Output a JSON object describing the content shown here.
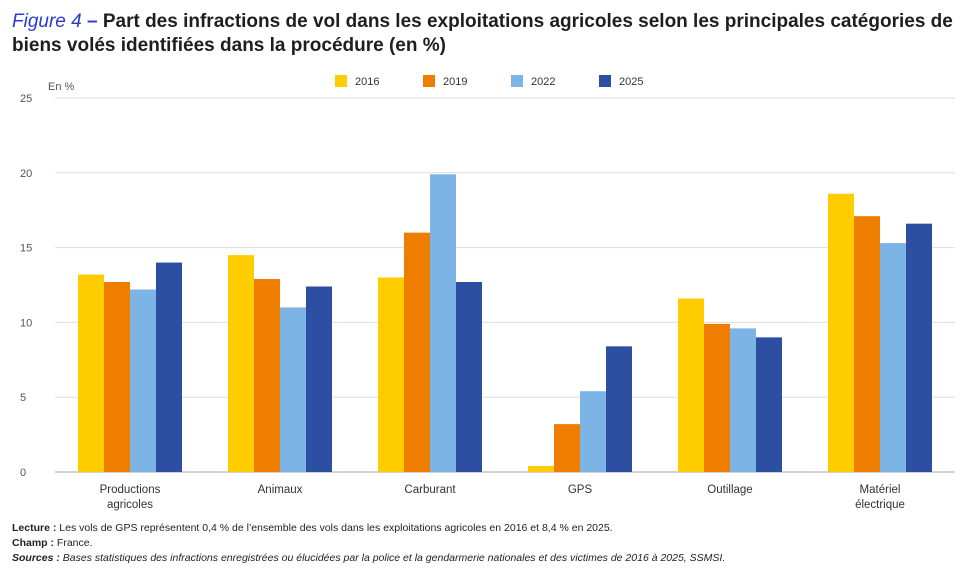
{
  "title": {
    "figure": "Figure 4",
    "dash": " – ",
    "text": "Part des infractions de vol dans les exploitations agricoles selon les principales catégories de biens volés identifiées dans la procédure (en %)"
  },
  "colors": {
    "2016": "#ffcc00",
    "2019": "#ee7d00",
    "2022": "#7db4e6",
    "2025": "#2d4fa1",
    "grid": "#dddddd"
  },
  "chart_data": {
    "type": "bar",
    "unit_label": "En %",
    "categories": [
      [
        "Productions",
        "agricoles"
      ],
      [
        "Animaux"
      ],
      [
        "Carburant"
      ],
      [
        "GPS"
      ],
      [
        "Outillage"
      ],
      [
        "Matériel",
        "électrique"
      ]
    ],
    "series": [
      {
        "name": "2016",
        "values": [
          13.2,
          14.5,
          13.0,
          0.4,
          11.6,
          18.6
        ]
      },
      {
        "name": "2019",
        "values": [
          12.7,
          12.9,
          16.0,
          3.2,
          9.9,
          17.1
        ]
      },
      {
        "name": "2022",
        "values": [
          12.2,
          11.0,
          19.9,
          5.4,
          9.6,
          15.3
        ]
      },
      {
        "name": "2025",
        "values": [
          14.0,
          12.4,
          12.7,
          8.4,
          9.0,
          16.6
        ]
      }
    ],
    "ylim": [
      0,
      25
    ],
    "yticks": [
      0,
      5,
      10,
      15,
      20,
      25
    ],
    "grid": true,
    "legend_position": "top-center"
  },
  "notes": {
    "lecture_key": "Lecture :",
    "lecture_text": " Les vols de GPS représentent 0,4 % de l’ensemble des vols dans les exploitations agricoles en 2016 et 8,4 % en 2025.",
    "champ_key": "Champ :",
    "champ_text": " France.",
    "sources_key": "Sources :",
    "sources_text": " Bases statistiques des infractions enregistrées ou élucidées par la police et la gendarmerie nationales et des victimes de 2016 à 2025, SSMSI."
  }
}
